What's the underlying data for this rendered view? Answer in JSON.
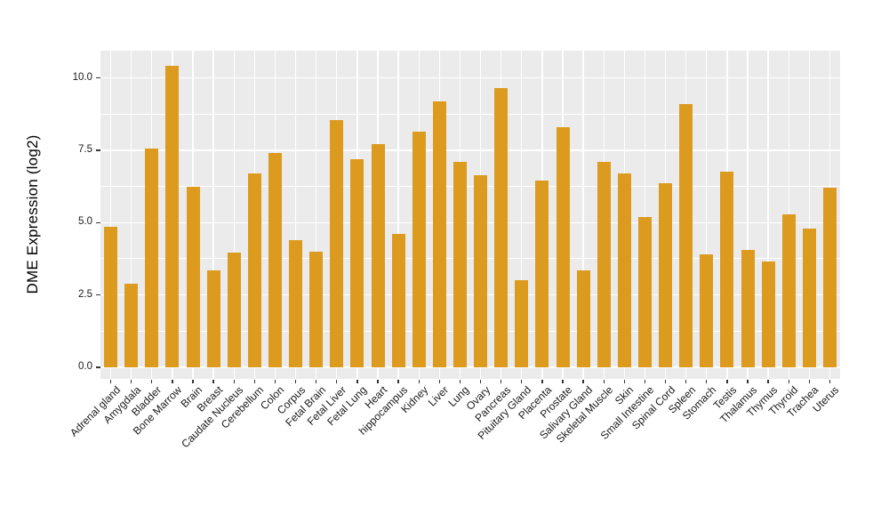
{
  "chart_data": {
    "type": "bar",
    "title": "",
    "xlabel": "",
    "ylabel": "DME Expression (log2)",
    "ylim": [
      0,
      10.9
    ],
    "yticks": [
      0.0,
      2.5,
      5.0,
      7.5,
      10.0
    ],
    "ytick_labels": [
      "0.0",
      "2.5",
      "5.0",
      "7.5",
      "10.0"
    ],
    "grid": true,
    "legend": false,
    "x_label_rotation_deg": 45,
    "categories": [
      "Adrenal gland",
      "Amygdala",
      "Bladder",
      "Bone Marrow",
      "Brain",
      "Breast",
      "Caudate Nucleus",
      "Cerebellum",
      "Colon",
      "Corpus",
      "Fetal Brain",
      "Fetal Liver",
      "Fetal Lung",
      "Heart",
      "hippocampus",
      "Kidney",
      "Liver",
      "Lung",
      "Ovary",
      "Pancreas",
      "Pituitary Gland",
      "Placenta",
      "Prostate",
      "Salivary Gland",
      "Skeletal Muscle",
      "Skin",
      "Small Intestine",
      "Spinal Cord",
      "Spleen",
      "Stomach",
      "Testis",
      "Thalamus",
      "Thymus",
      "Thyroid",
      "Trachea",
      "Uterus"
    ],
    "values": [
      4.85,
      2.9,
      7.55,
      10.4,
      6.25,
      3.35,
      3.95,
      6.7,
      7.4,
      4.4,
      4.0,
      8.55,
      7.2,
      7.7,
      4.6,
      8.15,
      9.2,
      7.1,
      6.65,
      9.65,
      3.0,
      6.45,
      8.3,
      3.35,
      7.1,
      6.7,
      5.2,
      6.35,
      9.1,
      3.9,
      6.75,
      4.05,
      3.65,
      5.3,
      4.8,
      6.2
    ],
    "colors": {
      "bar": "#DC9B1E",
      "panel_background": "#EBEBEB",
      "gridline": "#FFFFFF",
      "axis_text": "#1A1A1A",
      "tick_mark": "#333333"
    }
  }
}
